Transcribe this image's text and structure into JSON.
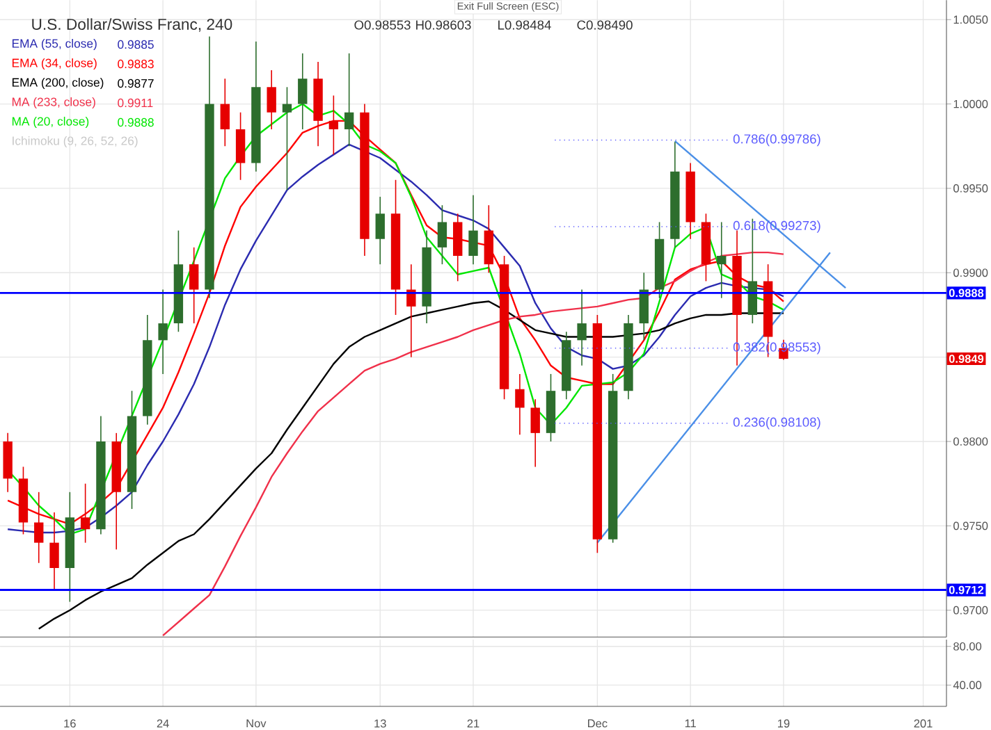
{
  "chart_data": [
    {
      "type": "candlestick",
      "title": "U.S. Dollar/Swiss Franc, 240",
      "annotations": [
        "Exit Full Screen (ESC)",
        "O0.98553",
        "H0.98603",
        "L0.98484",
        "C0.98490",
        "0.9885",
        "0.9883",
        "0.9877",
        "0.9911",
        "0.9888",
        "Ichimoku (9, 26, 52, 26)",
        "0.9849"
      ],
      "categories": [
        null,
        null,
        null,
        null,
        null,
        null,
        null,
        null,
        null,
        null,
        null,
        null,
        null,
        null,
        null,
        null,
        null,
        null,
        null,
        null,
        null,
        null,
        null,
        null,
        null,
        null,
        null,
        null,
        null,
        null,
        null,
        null,
        null,
        null,
        null,
        null,
        null,
        null,
        null,
        null,
        null,
        null,
        null,
        null,
        null,
        null,
        null,
        null,
        null,
        null,
        null,
        null,
        null,
        null,
        null,
        null,
        null,
        null,
        null,
        null,
        null
      ],
      "ylim": [
        0.96841,
        1.00615
      ],
      "yticks": [
        {
          "value": 0.97,
          "label": "0.9700"
        },
        {
          "value": 0.975,
          "label": "0.9750"
        },
        {
          "value": 0.98,
          "label": "0.9800"
        },
        {
          "value": 0.985,
          "label": null
        },
        {
          "value": 0.99,
          "label": "0.9900"
        },
        {
          "value": 0.995,
          "label": "0.9950"
        },
        {
          "value": 1.0,
          "label": "1.0000"
        },
        {
          "value": 1.005,
          "label": "1.0050"
        }
      ],
      "tick_labels": "y",
      "grid": true,
      "legend": "top left",
      "ref_lines": [
        {
          "axis": "y",
          "value": 0.9888,
          "label": "0.9888",
          "color": "#0000ff",
          "line_style": "solid"
        },
        {
          "axis": "y",
          "value": 0.9712,
          "label": "0.9712",
          "color": "#0000ff",
          "line_style": "solid"
        },
        {
          "axis": "y",
          "value": 0.99786,
          "label": "0.786(0.99786)",
          "color": "#5c5cff",
          "line_style": "dotted"
        },
        {
          "axis": "y",
          "value": 0.99273,
          "label": "0.618(0.99273)",
          "color": "#5c5cff",
          "line_style": "dotted"
        },
        {
          "axis": "y",
          "value": 0.98553,
          "label": "0.382(0.98553)",
          "color": "#5c5cff",
          "line_style": "dotted"
        },
        {
          "axis": "y",
          "value": 0.98108,
          "label": "0.236(0.98108)",
          "color": "#5c5cff",
          "line_style": "dotted"
        }
      ],
      "series": [
        {
          "type": "line",
          "name": "EMA (55, close)",
          "color": "#2b2bb0",
          "values": [
            0.9748,
            0.9747,
            0.9746,
            0.9746,
            0.9747,
            0.9749,
            0.9755,
            0.9762,
            0.977,
            0.9786,
            0.98,
            0.9816,
            0.9834,
            0.9856,
            0.9881,
            0.9902,
            0.9919,
            0.9934,
            0.9949,
            0.9957,
            0.9964,
            0.997,
            0.9976,
            0.9972,
            0.9968,
            0.9961,
            0.9954,
            0.9946,
            0.9937,
            0.9934,
            0.9931,
            0.9926,
            0.9915,
            0.9904,
            0.9882,
            0.9867,
            0.9856,
            0.9851,
            0.9849,
            0.9843,
            0.9845,
            0.9851,
            0.9862,
            0.9875,
            0.9886,
            0.9891,
            0.9894,
            0.9892,
            0.9891,
            0.989,
            0.9886,
            null,
            null,
            null,
            null,
            null,
            null,
            null,
            null,
            null,
            null
          ]
        },
        {
          "type": "line",
          "name": "EMA (34, close)",
          "color": "#ff0000",
          "values": [
            0.9765,
            0.9761,
            0.9757,
            0.9754,
            0.9751,
            0.9757,
            0.9764,
            0.9772,
            null,
            0.9804,
            0.982,
            0.9841,
            0.9864,
            0.9888,
            0.9916,
            0.9939,
            0.9951,
            0.9961,
            0.9971,
            0.9983,
            0.9987,
            0.999,
            0.999,
            0.9981,
            0.9973,
            0.9965,
            0.9946,
            0.9928,
            0.9921,
            0.992,
            0.9918,
            0.9916,
            0.9898,
            0.9873,
            0.986,
            0.9845,
            0.9838,
            0.9836,
            0.9834,
            0.9834,
            null,
            0.986,
            0.9877,
            0.9896,
            0.9902,
            0.9905,
            0.9907,
            0.9898,
            0.9893,
            0.9891,
            0.9883,
            null,
            null,
            null,
            null,
            null,
            null,
            null,
            null,
            null,
            null
          ]
        },
        {
          "type": "line",
          "name": "EMA (200, close)",
          "color": "#000000",
          "values": [
            null,
            null,
            0.9689,
            0.9695,
            0.97,
            0.9706,
            0.9711,
            0.9715,
            0.9719,
            0.9727,
            0.9734,
            0.9741,
            0.9745,
            0.9754,
            0.9764,
            0.9774,
            0.9784,
            0.9793,
            0.9807,
            0.982,
            0.9833,
            0.9846,
            0.9856,
            0.9862,
            0.9866,
            0.987,
            0.9874,
            0.9876,
            0.9878,
            0.988,
            0.9882,
            0.9883,
            0.9878,
            0.9872,
            0.9866,
            0.9864,
            0.9862,
            0.9862,
            0.9862,
            0.9862,
            0.9863,
            0.9864,
            0.9866,
            0.987,
            0.9873,
            0.9875,
            0.9875,
            0.9876,
            0.9876,
            0.9876,
            0.9876,
            null,
            null,
            null,
            null,
            null,
            null,
            null,
            null,
            null,
            null
          ]
        },
        {
          "type": "line",
          "name": "MA (233, close)",
          "color": "#f0304a",
          "values": [
            null,
            null,
            null,
            null,
            null,
            null,
            null,
            null,
            null,
            null,
            0.9685,
            0.9693,
            0.9701,
            0.9709,
            0.9726,
            0.9744,
            0.9761,
            0.9779,
            0.9793,
            0.9806,
            0.9818,
            0.9826,
            0.9834,
            0.9842,
            0.9846,
            0.9849,
            0.9853,
            0.9856,
            0.9859,
            0.9862,
            0.9866,
            0.9869,
            0.9872,
            0.9874,
            0.9875,
            0.9877,
            0.9878,
            0.9879,
            0.988,
            0.9882,
            0.9884,
            0.9885,
            0.9891,
            0.9895,
            0.9901,
            0.9906,
            0.991,
            0.9911,
            0.9912,
            0.9912,
            0.9911,
            null,
            null,
            null,
            null,
            null,
            null,
            null,
            null,
            null,
            null
          ]
        },
        {
          "type": "line",
          "name": "MA (20, close)",
          "color": "#00e600",
          "values": [
            0.9783,
            0.9773,
            0.9762,
            0.9754,
            0.9745,
            0.9748,
            null,
            null,
            null,
            null,
            0.986,
            null,
            0.9907,
            null,
            0.9956,
            0.9969,
            0.9981,
            0.9988,
            0.9995,
            1.0,
            0.9993,
            0.9996,
            0.9988,
            0.9976,
            0.9972,
            0.9965,
            0.9945,
            0.9921,
            0.991,
            0.9899,
            0.9901,
            0.9903,
            null,
            0.9852,
            0.982,
            0.981,
            0.982,
            0.9833,
            null,
            0.9835,
            0.9841,
            0.9852,
            0.9883,
            0.9915,
            0.9923,
            0.9927,
            0.9899,
            0.9895,
            0.9886,
            0.9883,
            0.9878,
            null,
            null,
            null,
            null,
            null,
            null,
            null,
            null,
            null,
            null
          ]
        },
        {
          "type": "line",
          "color": "#4a8fe7",
          "values": [
            null,
            null,
            null,
            null,
            null,
            null,
            null,
            null,
            null,
            null,
            null,
            null,
            null,
            null,
            null,
            null,
            null,
            null,
            null,
            null,
            null,
            null,
            null,
            null,
            null,
            null,
            null,
            null,
            null,
            null,
            null,
            null,
            null,
            null,
            null,
            null,
            null,
            null,
            null,
            null,
            null,
            null,
            null,
            0.9978,
            null,
            null,
            null,
            null,
            null,
            null,
            null,
            null,
            null,
            null,
            0.9891,
            null,
            null,
            null,
            null,
            null,
            null
          ]
        },
        {
          "type": "line",
          "color": "#4a8fe7",
          "values": [
            null,
            null,
            null,
            null,
            null,
            null,
            null,
            null,
            null,
            null,
            null,
            null,
            null,
            null,
            null,
            null,
            null,
            null,
            null,
            null,
            null,
            null,
            null,
            null,
            null,
            null,
            null,
            null,
            null,
            null,
            null,
            null,
            null,
            null,
            null,
            null,
            null,
            null,
            0.974,
            null,
            null,
            null,
            null,
            null,
            null,
            null,
            null,
            null,
            null,
            null,
            null,
            null,
            null,
            0.9912,
            null,
            null,
            null,
            null,
            null,
            null,
            null
          ]
        },
        {
          "ohlc": [
            [
              0.98,
              0.9805,
              0.977,
              0.9778
            ],
            [
              0.9778,
              0.9785,
              0.9745,
              0.9752
            ],
            [
              0.9752,
              0.977,
              0.9728,
              0.974
            ],
            [
              0.974,
              0.9758,
              0.9712,
              0.9725
            ],
            [
              0.9725,
              0.977,
              0.9705,
              0.9755
            ],
            [
              0.9755,
              0.9775,
              0.974,
              0.9748
            ],
            [
              0.9748,
              0.9815,
              0.9745,
              0.98
            ],
            [
              0.98,
              0.9805,
              0.9736,
              0.977
            ],
            [
              0.977,
              0.983,
              0.976,
              0.9815
            ],
            [
              0.9815,
              0.9875,
              0.981,
              0.986
            ],
            [
              0.986,
              0.989,
              0.984,
              0.987
            ],
            [
              0.987,
              0.9925,
              0.9865,
              0.9905
            ],
            [
              0.9905,
              0.9915,
              0.987,
              0.989
            ],
            [
              0.989,
              1.004,
              0.9885,
              1.0
            ],
            [
              1.0,
              1.0015,
              0.9975,
              0.9985
            ],
            [
              0.9985,
              0.9995,
              0.9955,
              0.9965
            ],
            [
              0.9965,
              1.0037,
              0.996,
              1.001
            ],
            [
              1.001,
              1.002,
              0.9985,
              0.9995
            ],
            [
              0.9995,
              1.001,
              0.9949,
              1.0
            ],
            [
              1.0,
              1.003,
              0.9985,
              1.0015
            ],
            [
              1.0015,
              1.0025,
              0.9975,
              0.999
            ],
            [
              0.999,
              1.0005,
              0.997,
              0.9985
            ],
            [
              0.9985,
              1.003,
              0.9975,
              0.9995
            ],
            [
              0.9995,
              1.0,
              0.991,
              0.992
            ],
            [
              0.992,
              0.9945,
              0.9905,
              0.9935
            ],
            [
              0.9935,
              0.9955,
              0.9875,
              0.989
            ],
            [
              0.989,
              0.9905,
              0.985,
              0.988
            ],
            [
              0.988,
              0.9925,
              0.987,
              0.9915
            ],
            [
              0.9915,
              0.994,
              0.9905,
              0.993
            ],
            [
              0.993,
              0.9935,
              0.9895,
              0.991
            ],
            [
              0.991,
              0.9946,
              0.9905,
              0.9925
            ],
            [
              0.9925,
              0.994,
              0.99,
              0.9905
            ],
            [
              0.9905,
              0.991,
              0.9825,
              0.9831
            ],
            [
              0.9831,
              0.984,
              0.9804,
              0.982
            ],
            [
              0.982,
              0.9825,
              0.9785,
              0.9805
            ],
            [
              0.9805,
              0.984,
              0.98,
              0.983
            ],
            [
              0.983,
              0.9865,
              0.9825,
              0.986
            ],
            [
              0.986,
              0.989,
              0.9845,
              0.987
            ],
            [
              0.987,
              0.9875,
              0.9734,
              0.9742
            ],
            [
              0.9742,
              0.984,
              0.974,
              0.983
            ],
            [
              0.983,
              0.9875,
              0.9825,
              0.987
            ],
            [
              0.987,
              0.99,
              0.986,
              0.989
            ],
            [
              0.989,
              0.993,
              0.9885,
              0.992
            ],
            [
              0.992,
              0.99775,
              0.9915,
              0.996
            ],
            [
              0.996,
              0.9965,
              0.992,
              0.993
            ],
            [
              0.993,
              0.9935,
              0.9895,
              0.9905
            ],
            [
              0.9905,
              0.993,
              0.9885,
              0.991
            ],
            [
              0.991,
              0.9925,
              0.9845,
              0.9875
            ],
            [
              0.9875,
              0.9932,
              0.987,
              0.9895
            ],
            [
              0.9895,
              0.9905,
              0.985,
              0.9862
            ],
            [
              0.98553,
              0.98603,
              0.98484,
              0.9849
            ],
            null,
            null,
            null,
            null,
            null,
            null,
            null,
            null,
            null,
            null
          ],
          "colors": [
            "#e60000",
            "#e60000",
            "#e60000",
            "#e60000",
            "#2d6e2d",
            "#e60000",
            "#2d6e2d",
            "#e60000",
            "#2d6e2d",
            "#2d6e2d",
            "#2d6e2d",
            "#2d6e2d",
            "#e60000",
            "#2d6e2d",
            "#e60000",
            "#e60000",
            "#2d6e2d",
            "#e60000",
            "#2d6e2d",
            "#2d6e2d",
            "#e60000",
            "#e60000",
            "#2d6e2d",
            "#e60000",
            "#2d6e2d",
            "#e60000",
            "#e60000",
            "#2d6e2d",
            "#2d6e2d",
            "#e60000",
            "#2d6e2d",
            "#e60000",
            "#e60000",
            "#e60000",
            "#e60000",
            "#2d6e2d",
            "#2d6e2d",
            "#2d6e2d",
            "#e60000",
            "#2d6e2d",
            "#2d6e2d",
            "#2d6e2d",
            "#2d6e2d",
            "#2d6e2d",
            "#e60000",
            "#e60000",
            "#2d6e2d",
            "#e60000",
            "#2d6e2d",
            "#e60000",
            "#e60000",
            null,
            null,
            null,
            null,
            null,
            null,
            null,
            null,
            null,
            null
          ]
        }
      ]
    },
    {
      "type": "line",
      "categories": [
        null,
        null,
        null,
        null,
        "16",
        null,
        null,
        null,
        null,
        null,
        "24",
        null,
        null,
        null,
        null,
        null,
        "Nov",
        null,
        null,
        null,
        null,
        null,
        null,
        null,
        "13",
        null,
        null,
        null,
        null,
        null,
        "21",
        null,
        null,
        null,
        null,
        null,
        null,
        null,
        "Dec",
        null,
        null,
        null,
        null,
        null,
        "11",
        null,
        null,
        null,
        null,
        null,
        "19",
        null,
        null,
        null,
        null,
        null,
        null,
        null,
        null,
        "201",
        null
      ],
      "ylim": [
        18,
        87
      ],
      "yticks": [
        {
          "value": 40,
          "label": "40.00"
        },
        {
          "value": 80,
          "label": "80.00"
        }
      ],
      "grid": true
    }
  ]
}
